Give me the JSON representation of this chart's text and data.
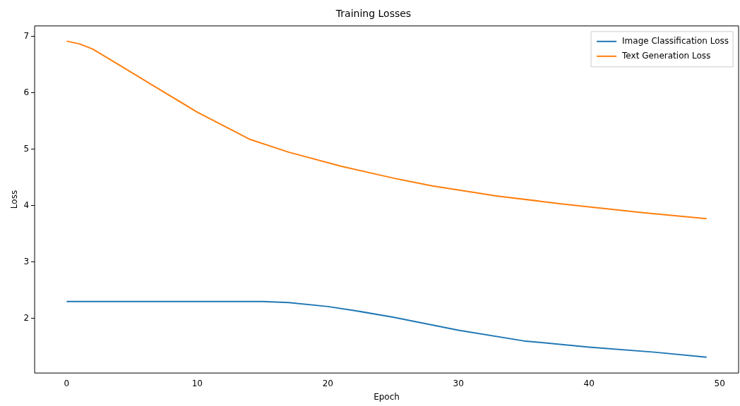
{
  "chart_data": {
    "type": "line",
    "title": "Training Losses",
    "xlabel": "Epoch",
    "ylabel": "Loss",
    "xlim": [
      -2.45,
      51.45
    ],
    "xticks": [
      0,
      10,
      20,
      30,
      40,
      50
    ],
    "ylim": [
      1.03,
      7.19
    ],
    "yticks": [
      2,
      3,
      4,
      5,
      6,
      7
    ],
    "grid": false,
    "legend": "top right",
    "marker": "none",
    "line_style": "solid",
    "series": [
      {
        "name": "Image Classification Loss",
        "color": "#1f77b4",
        "x": [
          0,
          5,
          10,
          15,
          17,
          20,
          22,
          25,
          30,
          35,
          40,
          45,
          49
        ],
        "values": [
          2.3,
          2.3,
          2.3,
          2.3,
          2.28,
          2.21,
          2.14,
          2.02,
          1.79,
          1.6,
          1.49,
          1.4,
          1.31
        ]
      },
      {
        "name": "Text Generation Loss",
        "color": "#ff7f0e",
        "x": [
          0,
          1,
          2,
          4,
          7,
          10,
          14,
          17,
          21,
          25,
          28,
          33,
          38,
          44,
          49
        ],
        "values": [
          6.92,
          6.87,
          6.78,
          6.5,
          6.08,
          5.66,
          5.18,
          4.95,
          4.7,
          4.49,
          4.35,
          4.17,
          4.03,
          3.88,
          3.77
        ]
      }
    ]
  }
}
